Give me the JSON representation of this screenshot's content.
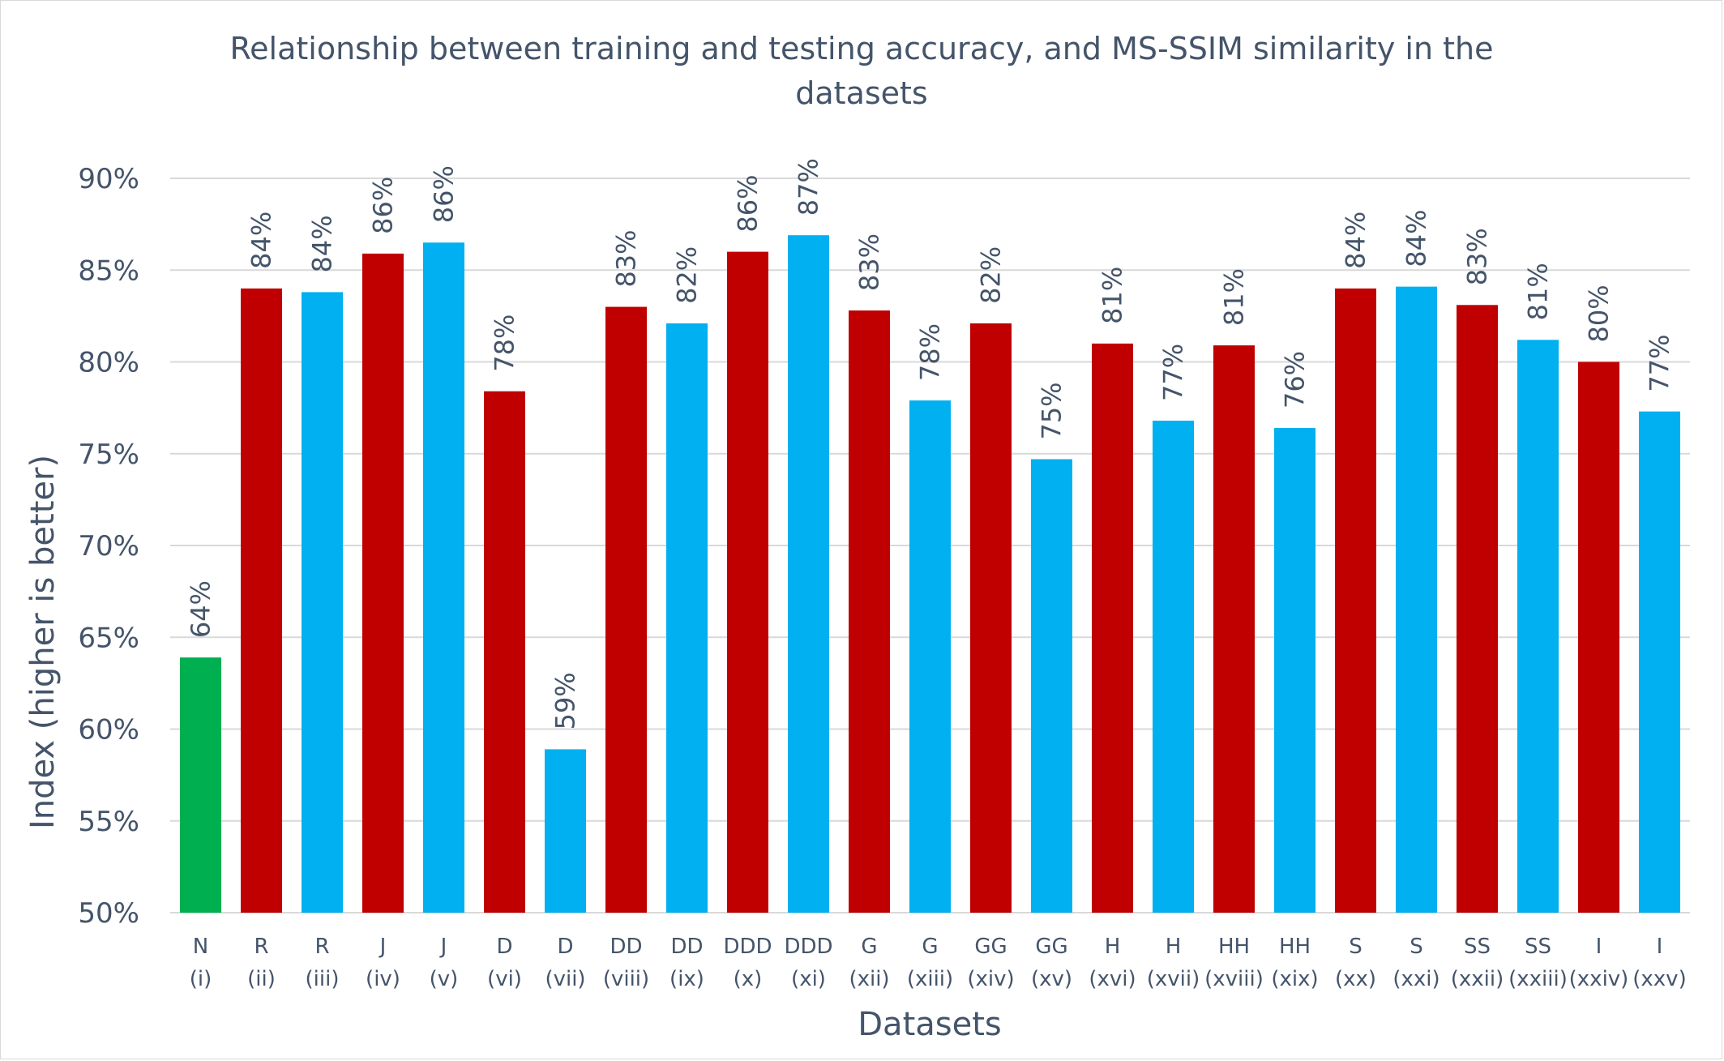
{
  "chart_data": {
    "type": "bar",
    "title_lines": [
      "Relationship between training and testing accuracy, and MS-SSIM similarity in the",
      "datasets"
    ],
    "xlabel": "Datasets",
    "ylabel": "Index (higher is better)",
    "ylim": [
      0.5,
      0.9
    ],
    "yticks": [
      0.5,
      0.55,
      0.6,
      0.65,
      0.7,
      0.75,
      0.8,
      0.85,
      0.9
    ],
    "ytick_labels": [
      "50%",
      "55%",
      "60%",
      "65%",
      "70%",
      "75%",
      "80%",
      "85%",
      "90%"
    ],
    "grid": true,
    "colors": {
      "green": "#00b050",
      "red": "#c00000",
      "blue": "#00b0f0"
    },
    "categories": [
      {
        "line1": "N",
        "line2": "(i)",
        "value": 0.639,
        "label": "64%",
        "color": "green"
      },
      {
        "line1": "R",
        "line2": "(ii)",
        "value": 0.84,
        "label": "84%",
        "color": "red"
      },
      {
        "line1": "R",
        "line2": "(iii)",
        "value": 0.838,
        "label": "84%",
        "color": "blue"
      },
      {
        "line1": "J",
        "line2": "(iv)",
        "value": 0.859,
        "label": "86%",
        "color": "red"
      },
      {
        "line1": "J",
        "line2": "(v)",
        "value": 0.865,
        "label": "86%",
        "color": "blue"
      },
      {
        "line1": "D",
        "line2": "(vi)",
        "value": 0.784,
        "label": "78%",
        "color": "red"
      },
      {
        "line1": "D",
        "line2": "(vii)",
        "value": 0.589,
        "label": "59%",
        "color": "blue"
      },
      {
        "line1": "DD",
        "line2": "(viii)",
        "value": 0.83,
        "label": "83%",
        "color": "red"
      },
      {
        "line1": "DD",
        "line2": "(ix)",
        "value": 0.821,
        "label": "82%",
        "color": "blue"
      },
      {
        "line1": "DDD",
        "line2": "(x)",
        "value": 0.86,
        "label": "86%",
        "color": "red"
      },
      {
        "line1": "DDD",
        "line2": "(xi)",
        "value": 0.869,
        "label": "87%",
        "color": "blue"
      },
      {
        "line1": "G",
        "line2": "(xii)",
        "value": 0.828,
        "label": "83%",
        "color": "red"
      },
      {
        "line1": "G",
        "line2": "(xiii)",
        "value": 0.779,
        "label": "78%",
        "color": "blue"
      },
      {
        "line1": "GG",
        "line2": "(xiv)",
        "value": 0.821,
        "label": "82%",
        "color": "red"
      },
      {
        "line1": "GG",
        "line2": "(xv)",
        "value": 0.747,
        "label": "75%",
        "color": "blue"
      },
      {
        "line1": "H",
        "line2": "(xvi)",
        "value": 0.81,
        "label": "81%",
        "color": "red"
      },
      {
        "line1": "H",
        "line2": "(xvii)",
        "value": 0.768,
        "label": "77%",
        "color": "blue"
      },
      {
        "line1": "HH",
        "line2": "(xviii)",
        "value": 0.809,
        "label": "81%",
        "color": "red"
      },
      {
        "line1": "HH",
        "line2": "(xix)",
        "value": 0.764,
        "label": "76%",
        "color": "blue"
      },
      {
        "line1": "S",
        "line2": "(xx)",
        "value": 0.84,
        "label": "84%",
        "color": "red"
      },
      {
        "line1": "S",
        "line2": "(xxi)",
        "value": 0.841,
        "label": "84%",
        "color": "blue"
      },
      {
        "line1": "SS",
        "line2": "(xxii)",
        "value": 0.831,
        "label": "83%",
        "color": "red"
      },
      {
        "line1": "SS",
        "line2": "(xxiii)",
        "value": 0.812,
        "label": "81%",
        "color": "blue"
      },
      {
        "line1": "I",
        "line2": "(xxiv)",
        "value": 0.8,
        "label": "80%",
        "color": "red"
      },
      {
        "line1": "I",
        "line2": "(xxv)",
        "value": 0.773,
        "label": "77%",
        "color": "blue"
      }
    ]
  }
}
